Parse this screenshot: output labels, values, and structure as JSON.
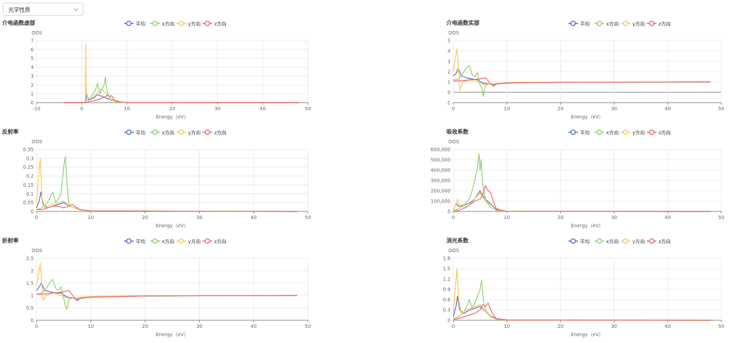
{
  "dropdown": {
    "selected": "光学性质"
  },
  "legend_items": [
    {
      "name": "平均",
      "color": "#5470c6"
    },
    {
      "name": "x方向",
      "color": "#91cc75"
    },
    {
      "name": "y方向",
      "color": "#fac858"
    },
    {
      "name": "z方向",
      "color": "#ee6666"
    }
  ],
  "chart_data": [
    {
      "type": "line",
      "title": "介电函数虚部",
      "ylabel": "DOS",
      "xlabel": "Energy（eV）",
      "xlim": [
        -10,
        50
      ],
      "xticks": [
        -10,
        0,
        10,
        20,
        30,
        40,
        50
      ],
      "ylim": [
        0,
        7
      ],
      "yticks": [
        0,
        1,
        2,
        3,
        4,
        5,
        6,
        7
      ],
      "ytick_labels": [
        "0",
        "1",
        "2",
        "3",
        "4",
        "5",
        "6",
        "7"
      ],
      "series": [
        {
          "name": "平均",
          "x": [
            -4,
            0.8,
            1.1,
            1.5,
            2.5,
            3.5,
            4.5,
            5.5,
            6.5,
            8,
            10,
            48
          ],
          "y": [
            0,
            0,
            1.0,
            0.3,
            0.5,
            0.9,
            0.7,
            0.5,
            0.3,
            0.05,
            0.01,
            0
          ]
        },
        {
          "name": "x方向",
          "x": [
            -4,
            0.8,
            1.2,
            2,
            3,
            3.5,
            4,
            4.5,
            5,
            5.2,
            5.6,
            6.2,
            7,
            9,
            48
          ],
          "y": [
            0,
            0,
            0.4,
            0.6,
            1.4,
            2.2,
            1.0,
            1.5,
            2.1,
            2.9,
            1.2,
            0.6,
            0.3,
            0.02,
            0
          ]
        },
        {
          "name": "y方向",
          "x": [
            -4,
            0.8,
            0.9,
            1.0,
            1.4,
            2.5,
            3.8,
            4.5,
            5,
            5.6,
            6.2,
            7.5,
            9,
            48
          ],
          "y": [
            0,
            0,
            6.6,
            1.2,
            0.5,
            0.6,
            1.3,
            1.6,
            1.2,
            0.8,
            0.4,
            0.1,
            0.02,
            0
          ]
        },
        {
          "name": "z方向",
          "x": [
            -4,
            0.8,
            1.5,
            2.5,
            4,
            5,
            5.8,
            6.2,
            6.6,
            7.2,
            8,
            10,
            48
          ],
          "y": [
            0,
            0,
            0.1,
            0.2,
            0.4,
            0.6,
            0.9,
            0.7,
            0.8,
            0.3,
            0.1,
            0.01,
            0
          ]
        }
      ]
    },
    {
      "type": "line",
      "title": "介电函数实部",
      "ylabel": "DOS",
      "xlabel": "Energy（eV）",
      "xlim": [
        0,
        50
      ],
      "xticks": [
        0,
        10,
        20,
        30,
        40,
        50
      ],
      "ylim": [
        -1,
        5
      ],
      "yticks": [
        -1,
        0,
        1,
        2,
        3,
        4,
        5
      ],
      "ytick_labels": [
        "-1",
        "0",
        "1",
        "2",
        "3",
        "4",
        "5"
      ],
      "series": [
        {
          "name": "平均",
          "x": [
            0,
            0.5,
            0.9,
            1.5,
            2.5,
            3.5,
            4.5,
            5.5,
            6.5,
            7.5,
            9,
            12,
            20,
            48
          ],
          "y": [
            1.6,
            1.8,
            2.3,
            1.6,
            1.4,
            1.3,
            1.2,
            0.9,
            0.8,
            0.75,
            0.85,
            0.92,
            0.97,
            1.0
          ]
        },
        {
          "name": "x方向",
          "x": [
            0,
            1,
            2,
            2.5,
            3,
            3.5,
            4,
            4.5,
            5,
            5.3,
            5.6,
            6,
            7,
            8,
            10,
            20,
            48
          ],
          "y": [
            1.2,
            1.3,
            2.0,
            2.4,
            2.6,
            1.7,
            1.5,
            1.9,
            0.7,
            0.4,
            -0.4,
            0.7,
            0.8,
            0.85,
            0.9,
            0.97,
            1.0
          ]
        },
        {
          "name": "y方向",
          "x": [
            0,
            0.4,
            0.7,
            0.9,
            1.2,
            1.8,
            3,
            4,
            5,
            6,
            7,
            9,
            12,
            20,
            48
          ],
          "y": [
            2.0,
            3.4,
            4.2,
            2.8,
            0.2,
            1.0,
            1.2,
            1.1,
            0.9,
            0.7,
            0.8,
            0.9,
            0.95,
            0.98,
            1.0
          ]
        },
        {
          "name": "z方向",
          "x": [
            0,
            1,
            2,
            3,
            4,
            5,
            6,
            6.5,
            7,
            7.5,
            8,
            10,
            20,
            48
          ],
          "y": [
            1.1,
            1.1,
            1.15,
            1.2,
            1.25,
            1.3,
            1.4,
            1.1,
            0.8,
            0.6,
            0.8,
            0.9,
            0.97,
            1.0
          ]
        }
      ]
    },
    {
      "type": "line",
      "title": "反射率",
      "ylabel": "DOS",
      "xlabel": "Energy（eV）",
      "xlim": [
        0,
        50
      ],
      "xticks": [
        0,
        10,
        20,
        30,
        40,
        50
      ],
      "ylim": [
        0,
        0.35
      ],
      "yticks": [
        0,
        0.05,
        0.1,
        0.15,
        0.2,
        0.25,
        0.3,
        0.35
      ],
      "ytick_labels": [
        "0",
        "0.05",
        "0.1",
        "0.15",
        "0.2",
        "0.25",
        "0.3",
        "0.35"
      ],
      "series": [
        {
          "name": "平均",
          "x": [
            0,
            0.5,
            0.8,
            1.2,
            2,
            3,
            4,
            5,
            6,
            7,
            8,
            10,
            48
          ],
          "y": [
            0.02,
            0.06,
            0.11,
            0.04,
            0.02,
            0.03,
            0.04,
            0.05,
            0.03,
            0.02,
            0.01,
            0.003,
            0.0
          ]
        },
        {
          "name": "x方向",
          "x": [
            0,
            1,
            2,
            2.5,
            3,
            3.5,
            4,
            4.5,
            5,
            5.3,
            5.6,
            6,
            7,
            8,
            10,
            48
          ],
          "y": [
            0.01,
            0.02,
            0.05,
            0.08,
            0.11,
            0.05,
            0.07,
            0.1,
            0.25,
            0.31,
            0.16,
            0.03,
            0.02,
            0.01,
            0.003,
            0.0
          ]
        },
        {
          "name": "y方向",
          "x": [
            0,
            0.4,
            0.7,
            1.0,
            1.5,
            2,
            3,
            4,
            5,
            6,
            7,
            8,
            10,
            48
          ],
          "y": [
            0.05,
            0.2,
            0.3,
            0.08,
            0.02,
            0.03,
            0.04,
            0.05,
            0.06,
            0.03,
            0.02,
            0.01,
            0.003,
            0.0
          ]
        },
        {
          "name": "z方向",
          "x": [
            0,
            1,
            2,
            3,
            4,
            5,
            6,
            6.5,
            7,
            7.5,
            8,
            10,
            48
          ],
          "y": [
            0.01,
            0.01,
            0.02,
            0.03,
            0.03,
            0.02,
            0.03,
            0.04,
            0.03,
            0.02,
            0.01,
            0.003,
            0.0
          ]
        }
      ]
    },
    {
      "type": "line",
      "title": "吸收系数",
      "ylabel": "DOS",
      "xlabel": "Energy（eV）",
      "xlim": [
        0,
        50
      ],
      "xticks": [
        0,
        10,
        20,
        30,
        40,
        50
      ],
      "ylim": [
        0,
        600000
      ],
      "yticks": [
        0,
        100000,
        200000,
        300000,
        400000,
        500000,
        600000
      ],
      "ytick_labels": [
        "0",
        "100,000",
        "200,000",
        "300,000",
        "400,000",
        "500,000",
        "600,000"
      ],
      "series": [
        {
          "name": "平均",
          "x": [
            0,
            0.5,
            1,
            2,
            3,
            4,
            5,
            5.5,
            6,
            7,
            8,
            10,
            48
          ],
          "y": [
            0,
            80000,
            50000,
            60000,
            80000,
            120000,
            200000,
            150000,
            120000,
            70000,
            20000,
            2000,
            0
          ]
        },
        {
          "name": "x方向",
          "x": [
            0,
            1,
            2,
            3,
            3.5,
            4,
            4.5,
            4.8,
            5,
            5.2,
            5.5,
            6,
            7,
            8,
            10,
            48
          ],
          "y": [
            0,
            30000,
            60000,
            120000,
            200000,
            300000,
            420000,
            560000,
            400000,
            500000,
            260000,
            120000,
            40000,
            10000,
            1000,
            0
          ]
        },
        {
          "name": "y方向",
          "x": [
            0,
            0.5,
            0.8,
            1.2,
            2,
            3,
            4,
            5,
            6,
            7,
            8,
            10,
            48
          ],
          "y": [
            0,
            80000,
            120000,
            50000,
            40000,
            60000,
            120000,
            180000,
            100000,
            40000,
            10000,
            1000,
            0
          ]
        },
        {
          "name": "z方向",
          "x": [
            0,
            1,
            2,
            3,
            4,
            5,
            5.5,
            6,
            6.5,
            7,
            7.5,
            8,
            9,
            10,
            48
          ],
          "y": [
            0,
            10000,
            30000,
            60000,
            100000,
            120000,
            160000,
            250000,
            200000,
            180000,
            90000,
            30000,
            10000,
            2000,
            0
          ]
        }
      ]
    },
    {
      "type": "line",
      "title": "折射率",
      "ylabel": "DOS",
      "xlabel": "Energy（eV）",
      "xlim": [
        0,
        50
      ],
      "xticks": [
        0,
        10,
        20,
        30,
        40,
        50
      ],
      "ylim": [
        0,
        2.5
      ],
      "yticks": [
        0,
        0.5,
        1,
        1.5,
        2,
        2.5
      ],
      "ytick_labels": [
        "0",
        "0.5",
        "1",
        "1.5",
        "2",
        "2.5"
      ],
      "series": [
        {
          "name": "平均",
          "x": [
            0,
            0.5,
            0.9,
            1.5,
            2.5,
            3.5,
            4.5,
            5.5,
            6.5,
            7.5,
            9,
            12,
            20,
            48
          ],
          "y": [
            1.2,
            1.35,
            1.5,
            1.2,
            1.15,
            1.1,
            1.1,
            0.95,
            0.9,
            0.85,
            0.92,
            0.95,
            0.98,
            1.0
          ]
        },
        {
          "name": "x方向",
          "x": [
            0,
            1,
            2,
            2.5,
            3,
            3.5,
            4,
            4.5,
            5,
            5.3,
            5.6,
            6,
            7,
            8,
            10,
            20,
            48
          ],
          "y": [
            1.05,
            1.1,
            1.35,
            1.55,
            1.65,
            1.3,
            1.2,
            1.35,
            0.9,
            0.6,
            0.45,
            0.85,
            0.9,
            0.92,
            0.95,
            0.98,
            1.0
          ]
        },
        {
          "name": "y方向",
          "x": [
            0,
            0.4,
            0.7,
            0.9,
            1.2,
            1.8,
            3,
            4,
            5,
            6,
            7,
            9,
            12,
            20,
            48
          ],
          "y": [
            1.4,
            1.9,
            2.3,
            1.7,
            0.8,
            1.0,
            1.1,
            1.05,
            0.95,
            0.85,
            0.9,
            0.95,
            0.97,
            0.99,
            1.0
          ]
        },
        {
          "name": "z方向",
          "x": [
            0,
            1,
            2,
            3,
            4,
            5,
            6,
            6.5,
            7,
            7.5,
            8,
            10,
            20,
            48
          ],
          "y": [
            1.05,
            1.05,
            1.07,
            1.1,
            1.12,
            1.15,
            1.2,
            1.05,
            0.9,
            0.78,
            0.88,
            0.93,
            0.98,
            1.0
          ]
        }
      ]
    },
    {
      "type": "line",
      "title": "消光系数",
      "ylabel": "DOS",
      "xlabel": "Energy（eV）",
      "xlim": [
        0,
        50
      ],
      "xticks": [
        0,
        10,
        20,
        30,
        40,
        50
      ],
      "ylim": [
        0,
        1.8
      ],
      "yticks": [
        0,
        0.3,
        0.6,
        0.9,
        1.2,
        1.5,
        1.8
      ],
      "ytick_labels": [
        "0",
        "0.3",
        "0.6",
        "0.9",
        "1.2",
        "1.5",
        "1.8"
      ],
      "series": [
        {
          "name": "平均",
          "x": [
            0,
            0.5,
            0.8,
            1.2,
            2,
            3,
            4,
            5,
            6,
            7,
            8,
            10,
            48
          ],
          "y": [
            0.1,
            0.4,
            0.7,
            0.3,
            0.2,
            0.3,
            0.35,
            0.4,
            0.25,
            0.12,
            0.05,
            0.01,
            0
          ]
        },
        {
          "name": "x方向",
          "x": [
            0,
            1,
            2,
            2.5,
            3,
            3.5,
            4,
            4.5,
            5,
            5.3,
            5.6,
            6,
            7,
            8,
            10,
            48
          ],
          "y": [
            0.05,
            0.1,
            0.25,
            0.4,
            0.6,
            0.35,
            0.5,
            0.7,
            0.9,
            1.15,
            0.6,
            0.3,
            0.1,
            0.03,
            0.01,
            0
          ]
        },
        {
          "name": "y方向",
          "x": [
            0,
            0.4,
            0.7,
            1.0,
            1.5,
            2,
            3,
            4,
            5,
            6,
            7,
            8,
            10,
            48
          ],
          "y": [
            0.2,
            1.0,
            1.5,
            0.6,
            0.2,
            0.25,
            0.35,
            0.4,
            0.45,
            0.25,
            0.1,
            0.03,
            0.01,
            0
          ]
        },
        {
          "name": "z方向",
          "x": [
            0,
            1,
            2,
            3,
            4,
            5,
            5.5,
            6,
            6.5,
            7,
            7.5,
            8,
            10,
            48
          ],
          "y": [
            0.02,
            0.05,
            0.1,
            0.15,
            0.2,
            0.3,
            0.45,
            0.4,
            0.5,
            0.3,
            0.15,
            0.05,
            0.01,
            0
          ]
        }
      ]
    }
  ]
}
